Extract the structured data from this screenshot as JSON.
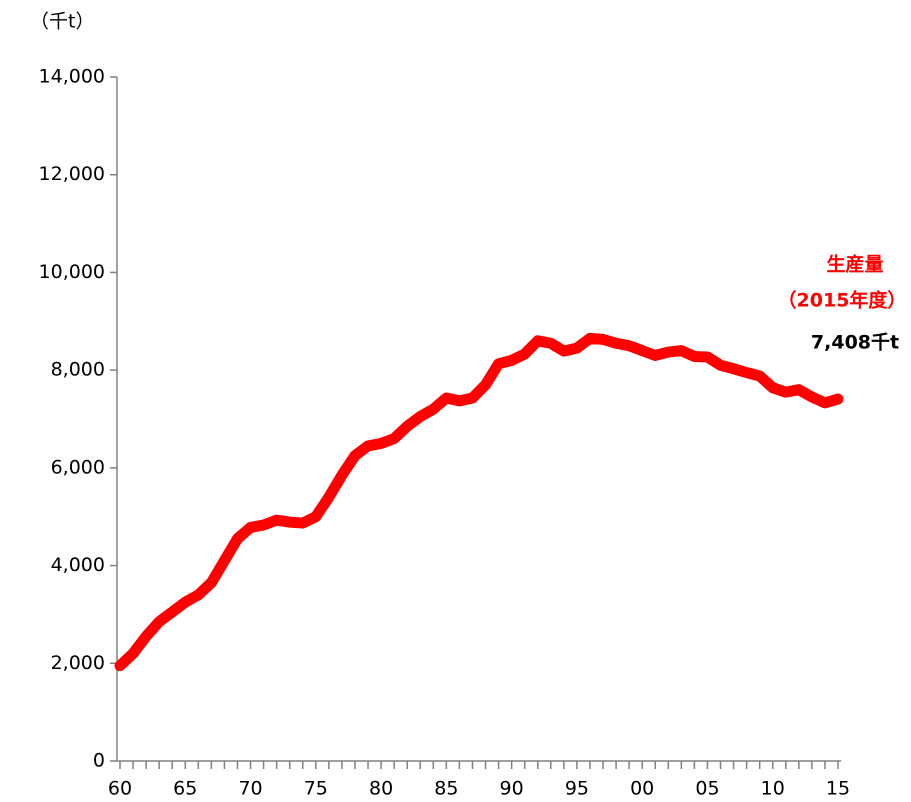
{
  "chart_data": {
    "type": "line",
    "unit_label": "（千t）",
    "annotations": [
      "生産量",
      "（2015年度）",
      "7,408千t"
    ],
    "categories": [
      "60",
      null,
      null,
      null,
      null,
      "65",
      null,
      null,
      null,
      null,
      "70",
      null,
      null,
      null,
      null,
      "75",
      null,
      null,
      null,
      null,
      "80",
      null,
      null,
      null,
      null,
      "85",
      null,
      null,
      null,
      null,
      "90",
      null,
      null,
      null,
      null,
      "95",
      null,
      null,
      null,
      null,
      "00",
      null,
      null,
      null,
      null,
      "05",
      null,
      null,
      null,
      null,
      "10",
      null,
      null,
      null,
      null,
      "15"
    ],
    "series": [
      {
        "name": "生産量",
        "color": "#ff0000",
        "values": [
          1950,
          2200,
          2550,
          2850,
          3050,
          3250,
          3400,
          3650,
          4100,
          4550,
          4780,
          4830,
          4930,
          4890,
          4870,
          5000,
          5400,
          5850,
          6250,
          6450,
          6500,
          6600,
          6850,
          7050,
          7200,
          7430,
          7370,
          7430,
          7700,
          8130,
          8200,
          8330,
          8600,
          8550,
          8390,
          8450,
          8650,
          8630,
          8550,
          8500,
          8400,
          8300,
          8370,
          8400,
          8280,
          8270,
          8100,
          8030,
          7950,
          7880,
          7640,
          7550,
          7600,
          7450,
          7330,
          7408
        ]
      }
    ],
    "ylim": [
      0,
      14000
    ],
    "yticks": [
      0,
      {
        "value": 2000,
        "label": "2,000"
      },
      {
        "value": 4000,
        "label": "4,000"
      },
      {
        "value": 6000,
        "label": "6,000"
      },
      {
        "value": 8000,
        "label": "8,000"
      },
      {
        "value": 10000,
        "label": "10,000"
      },
      {
        "value": 12000,
        "label": "12,000"
      },
      {
        "value": 14000,
        "label": "14,000"
      }
    ],
    "grid": false
  }
}
